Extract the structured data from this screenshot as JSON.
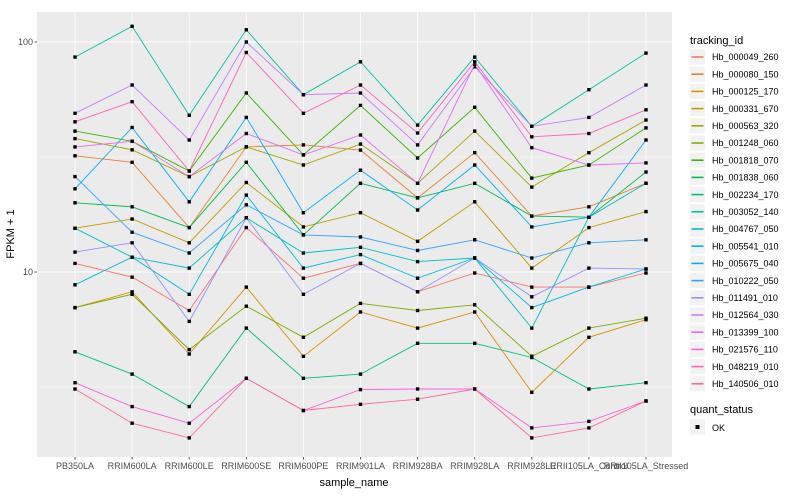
{
  "figure": {
    "legend": {
      "tracking_title": "tracking_id",
      "quant_title": "quant_status",
      "quant_ok_label": "OK"
    },
    "colors": {
      "panel_bg": "#EBEBEB",
      "grid_major": "#FFFFFF",
      "grid_minor": "#F7F7F7",
      "tick_text": "#4D4D4D",
      "axis_title_text": "#000000",
      "point": "#000000",
      "legend_key_bg": "#F2F2F2",
      "tick_mark": "#333333"
    }
  },
  "chart_data": {
    "type": "line",
    "title": "",
    "xlabel": "sample_name",
    "ylabel": "FPKM + 1",
    "y_scale": "log10",
    "ylim": [
      1.57,
      135
    ],
    "y_ticks": [
      {
        "label": "100",
        "value": 100
      },
      {
        "label": "10",
        "value": 10
      }
    ],
    "y_minor_gridlines": [
      31.62,
      3.162
    ],
    "grid": true,
    "legend_position": "right",
    "point_marker": "filled-black-square",
    "quant_status": "OK",
    "categories": [
      "PB350LA",
      "RRIM600LA",
      "RRIM600LE",
      "RRIM600SE",
      "RRIM600PE",
      "RRIM901LA",
      "RRIM928BA",
      "RRIM928LA",
      "RRIM928LE",
      "RRII105LA_Control",
      "RRII105LA_Stressed"
    ],
    "series": [
      {
        "name": "Hb_000049_260",
        "color": "#F8766D",
        "values": [
          10.9,
          9.5,
          6.8,
          15.6,
          9.4,
          10.9,
          8.2,
          9.9,
          8.6,
          8.6,
          9.9
        ]
      },
      {
        "name": "Hb_000080_150",
        "color": "#EA8331",
        "values": [
          32,
          30,
          15.6,
          35,
          35.7,
          33.9,
          21,
          33,
          17.5,
          19.2,
          24.3
        ]
      },
      {
        "name": "Hb_000125_170",
        "color": "#D89000",
        "values": [
          7.0,
          8.2,
          4.4,
          8.6,
          4.3,
          6.7,
          5.7,
          6.7,
          3.0,
          5.2,
          6.2
        ]
      },
      {
        "name": "Hb_000331_670",
        "color": "#C09B00",
        "values": [
          15.5,
          17.0,
          13.4,
          24.5,
          15.7,
          18.1,
          13.6,
          20.2,
          10.4,
          15.6,
          18.3
        ]
      },
      {
        "name": "Hb_000563_320",
        "color": "#A3A500",
        "values": [
          38,
          34,
          26,
          35,
          29.2,
          36,
          24.3,
          41,
          23.4,
          33,
          45.8
        ]
      },
      {
        "name": "Hb_001248_060",
        "color": "#7CAE00",
        "values": [
          7.0,
          8.0,
          4.6,
          7.1,
          5.2,
          7.3,
          6.8,
          7.2,
          4.3,
          5.7,
          6.3
        ]
      },
      {
        "name": "Hb_001818_070",
        "color": "#39B600",
        "values": [
          41,
          37,
          27.5,
          60,
          32.3,
          53,
          31.3,
          52,
          25.6,
          29.2,
          42.3
        ]
      },
      {
        "name": "Hb_001838_060",
        "color": "#00BB4E",
        "values": [
          20,
          19.2,
          15.6,
          30,
          14.5,
          24.3,
          21,
          24.3,
          17.5,
          17.3,
          27.2
        ]
      },
      {
        "name": "Hb_002234_170",
        "color": "#00BF7D",
        "values": [
          4.5,
          3.6,
          2.6,
          5.7,
          3.45,
          3.6,
          4.9,
          4.9,
          4.25,
          3.1,
          3.3
        ]
      },
      {
        "name": "Hb_003052_140",
        "color": "#00C1A3",
        "values": [
          86,
          117,
          48,
          113,
          59,
          82,
          43.5,
          86,
          43,
          62,
          89.5
        ]
      },
      {
        "name": "Hb_004767_050",
        "color": "#00BFC4",
        "values": [
          15.5,
          11.6,
          10.4,
          17.2,
          12.1,
          12.8,
          11.1,
          11.5,
          5.7,
          17.3,
          24.3
        ]
      },
      {
        "name": "Hb_005541_010",
        "color": "#00BAE0",
        "values": [
          8.8,
          11.6,
          8.0,
          21.6,
          10.4,
          11.9,
          9.4,
          11.5,
          7.0,
          8.6,
          10.3
        ]
      },
      {
        "name": "Hb_005675_040",
        "color": "#00B0F6",
        "values": [
          23,
          42.5,
          20.2,
          47,
          18.1,
          27.7,
          18.6,
          29.2,
          15.7,
          17.3,
          37.5
        ]
      },
      {
        "name": "Hb_010222_050",
        "color": "#35A2FF",
        "values": [
          26,
          14.9,
          12.1,
          19.6,
          14.5,
          14.2,
          12.4,
          13.8,
          11.5,
          13.4,
          13.8
        ]
      },
      {
        "name": "Hb_011491_010",
        "color": "#9590FF",
        "values": [
          12.2,
          13.4,
          6.1,
          17.2,
          8.0,
          10.9,
          8.2,
          11.5,
          7.8,
          10.4,
          10.3
        ]
      },
      {
        "name": "Hb_012564_030",
        "color": "#C77CFF",
        "values": [
          49,
          65,
          37.5,
          100,
          59,
          60,
          35.7,
          78,
          43,
          47,
          65
        ]
      },
      {
        "name": "Hb_013399_100",
        "color": "#E76BF3",
        "values": [
          35,
          37,
          26,
          40,
          32.3,
          39.4,
          24.3,
          80,
          34.7,
          29.2,
          29.8
        ]
      },
      {
        "name": "Hb_021576_110",
        "color": "#FA62DB",
        "values": [
          3.3,
          2.6,
          2.2,
          3.45,
          2.5,
          3.08,
          3.1,
          3.1,
          2.1,
          2.24,
          2.75
        ]
      },
      {
        "name": "Hb_048219_010",
        "color": "#FF62BC",
        "values": [
          45,
          55,
          27.5,
          90,
          49,
          65,
          40.2,
          82,
          38.7,
          40,
          50.7
        ]
      },
      {
        "name": "Hb_140506_010",
        "color": "#FF6A98",
        "values": [
          3.1,
          2.2,
          1.9,
          3.45,
          2.5,
          2.66,
          2.8,
          3.1,
          1.9,
          2.1,
          2.75
        ]
      }
    ]
  }
}
